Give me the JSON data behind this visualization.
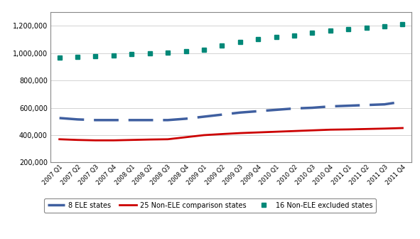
{
  "x_labels": [
    "2007 Q1",
    "2007 Q2",
    "2007 Q3",
    "2007 Q4",
    "2008 Q1",
    "2008 Q2",
    "2008 Q3",
    "2008 Q4",
    "2009 Q1",
    "2009 Q2",
    "2009 Q3",
    "2009 Q4",
    "2010 Q1",
    "2010 Q2",
    "2010 Q3",
    "2010 Q4",
    "2011 Q1",
    "2011 Q2",
    "2011 Q3",
    "2011 Q4"
  ],
  "ele_states": [
    525000,
    515000,
    510000,
    510000,
    510000,
    510000,
    510000,
    520000,
    535000,
    550000,
    565000,
    575000,
    585000,
    595000,
    600000,
    610000,
    615000,
    620000,
    625000,
    645000
  ],
  "non_ele_comparison": [
    370000,
    365000,
    362000,
    362000,
    365000,
    368000,
    370000,
    385000,
    400000,
    408000,
    415000,
    420000,
    425000,
    430000,
    435000,
    440000,
    442000,
    445000,
    448000,
    452000
  ],
  "non_ele_excluded": [
    965000,
    970000,
    975000,
    982000,
    990000,
    998000,
    1005000,
    1015000,
    1025000,
    1055000,
    1080000,
    1100000,
    1115000,
    1130000,
    1150000,
    1165000,
    1175000,
    1185000,
    1195000,
    1210000
  ],
  "ele_color": "#3F5FA0",
  "comparison_color": "#CC0000",
  "excluded_color": "#008878",
  "ylim": [
    200000,
    1300000
  ],
  "yticks": [
    200000,
    400000,
    600000,
    800000,
    1000000,
    1200000
  ],
  "legend_labels": [
    "8 ELE states",
    "25 Non-ELE comparison states",
    "16 Non-ELE excluded states"
  ],
  "background_color": "#ffffff",
  "grid_color": "#cccccc",
  "spine_color": "#888888"
}
